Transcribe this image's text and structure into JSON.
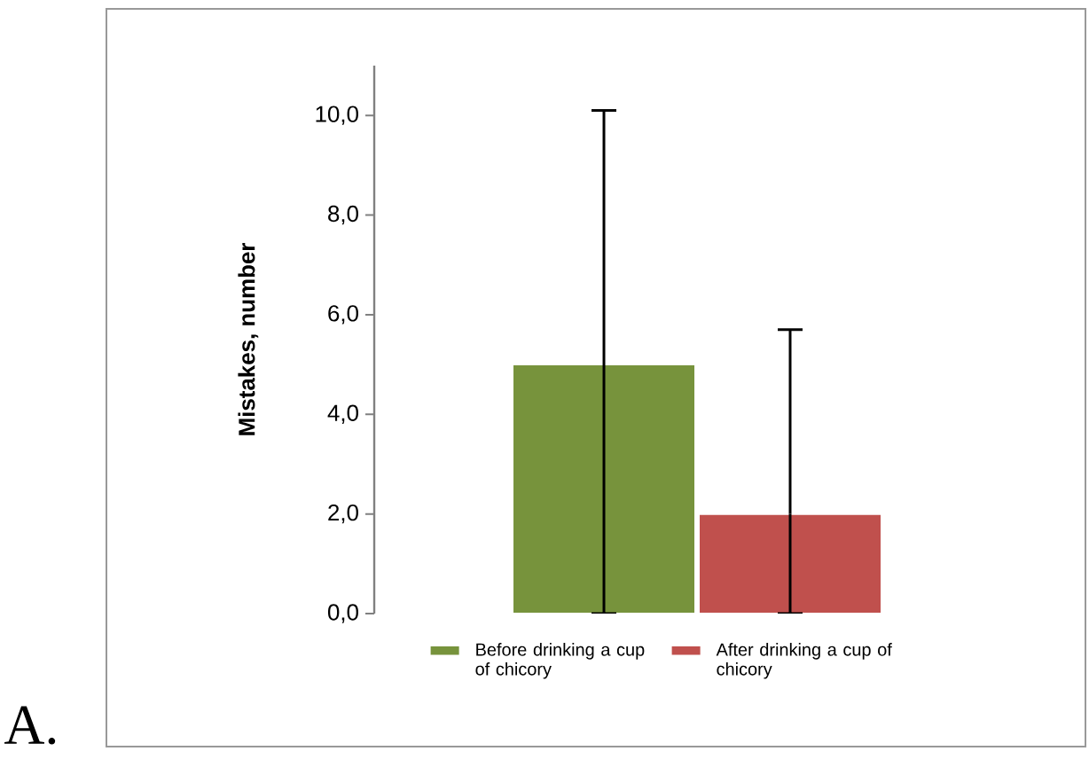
{
  "chart_data": {
    "type": "bar",
    "categories": [
      null
    ],
    "ylabel": "Mistakes, number",
    "ylim": [
      0,
      11
    ],
    "yticks": [
      {
        "value": 0,
        "label": "0,0"
      },
      {
        "value": 2,
        "label": "2,0"
      },
      {
        "value": 4,
        "label": "4,0"
      },
      {
        "value": 6,
        "label": "6,0"
      },
      {
        "value": 8,
        "label": "8,0"
      },
      {
        "value": 10,
        "label": "10,0"
      }
    ],
    "series": [
      {
        "name": "Before drinking a cup of chicory",
        "color": "#77933c",
        "values": [
          5.0
        ],
        "errors": [
          [
            0,
            10.1
          ]
        ]
      },
      {
        "name": "After drinking a cup of chicory",
        "color": "#c0504d",
        "values": [
          2.0
        ],
        "errors": [
          [
            0,
            5.7
          ]
        ]
      }
    ],
    "legend": "bottom",
    "annotations": [
      "A."
    ]
  }
}
